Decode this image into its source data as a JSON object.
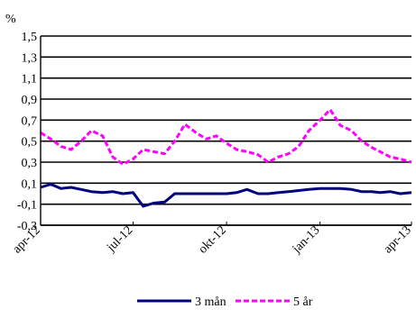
{
  "chart_data": {
    "type": "line",
    "unit_label": "%",
    "ylim": [
      -0.3,
      1.5
    ],
    "y_ticks": [
      "1,5",
      "1,3",
      "1,1",
      "0,9",
      "0,7",
      "0,5",
      "0,3",
      "0,1",
      "-0,1",
      "-0,3"
    ],
    "y_tick_values": [
      1.5,
      1.3,
      1.1,
      0.9,
      0.7,
      0.5,
      0.3,
      0.1,
      -0.1,
      -0.3
    ],
    "x_ticks": [
      "apr-12",
      "jul-12",
      "okt-12",
      "jan-13",
      "apr-13"
    ],
    "x_tick_values": [
      "2012-04-01",
      "2012-07-01",
      "2012-10-01",
      "2013-01-01",
      "2013-04-01"
    ],
    "x": [
      "2012-04-01",
      "2012-04-11",
      "2012-04-21",
      "2012-05-01",
      "2012-05-11",
      "2012-05-21",
      "2012-06-01",
      "2012-06-11",
      "2012-06-21",
      "2012-07-01",
      "2012-07-11",
      "2012-07-21",
      "2012-08-01",
      "2012-08-11",
      "2012-08-21",
      "2012-09-01",
      "2012-09-11",
      "2012-09-21",
      "2012-10-01",
      "2012-10-11",
      "2012-10-21",
      "2012-11-01",
      "2012-11-11",
      "2012-11-21",
      "2012-12-01",
      "2012-12-11",
      "2012-12-21",
      "2013-01-01",
      "2013-01-11",
      "2013-01-21",
      "2013-02-01",
      "2013-02-11",
      "2013-02-21",
      "2013-03-01",
      "2013-03-11",
      "2013-03-21",
      "2013-04-01"
    ],
    "series": [
      {
        "name": "3 mån",
        "color": "#000080",
        "style": "solid",
        "values": [
          0.06,
          0.09,
          0.05,
          0.06,
          0.04,
          0.02,
          0.01,
          0.02,
          0.0,
          0.01,
          -0.12,
          -0.09,
          -0.08,
          0.0,
          0.0,
          0.0,
          0.0,
          0.0,
          0.0,
          0.01,
          0.04,
          0.0,
          0.0,
          0.01,
          0.02,
          0.03,
          0.04,
          0.05,
          0.05,
          0.05,
          0.04,
          0.02,
          0.02,
          0.01,
          0.02,
          0.0,
          0.01
        ]
      },
      {
        "name": "5 år",
        "color": "#ff00ff",
        "style": "dashed",
        "values": [
          0.58,
          0.52,
          0.45,
          0.42,
          0.5,
          0.6,
          0.55,
          0.35,
          0.28,
          0.33,
          0.42,
          0.4,
          0.38,
          0.5,
          0.66,
          0.58,
          0.52,
          0.55,
          0.48,
          0.42,
          0.4,
          0.37,
          0.3,
          0.35,
          0.38,
          0.45,
          0.6,
          0.7,
          0.8,
          0.65,
          0.6,
          0.5,
          0.44,
          0.4,
          0.35,
          0.33,
          0.3
        ]
      }
    ],
    "legend": {
      "placement": "bottom"
    }
  }
}
